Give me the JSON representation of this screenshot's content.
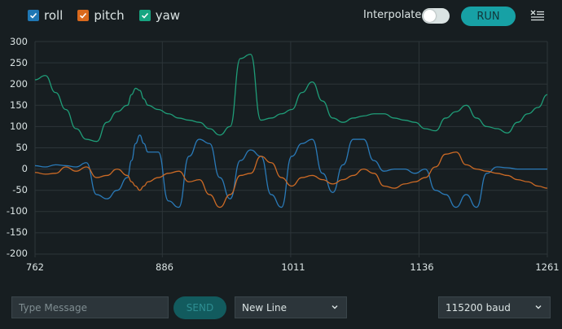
{
  "legend": {
    "items": [
      {
        "label": "roll",
        "color": "#1f77b4",
        "checked": true
      },
      {
        "label": "pitch",
        "color": "#d9691c",
        "checked": true
      },
      {
        "label": "yaw",
        "color": "#17a581",
        "checked": true
      }
    ]
  },
  "toolbar": {
    "interpolate_label": "Interpolate",
    "interpolate_on": false,
    "run_label": "RUN",
    "clear_icon": "clear-list-icon"
  },
  "footer": {
    "message_placeholder": "Type Message",
    "message_value": "",
    "send_label": "SEND",
    "line_ending": "New Line",
    "baud": "115200 baud"
  },
  "colors": {
    "background": "#171e21",
    "grid": "#2d3539",
    "accent": "#17a1a5",
    "roll": "#2a7ab8",
    "pitch": "#cc6a25",
    "yaw": "#1f9d78"
  },
  "chart_data": {
    "type": "line",
    "title": "",
    "xlabel": "",
    "ylabel": "",
    "xlim": [
      762,
      1261
    ],
    "ylim": [
      -200,
      300
    ],
    "grid": true,
    "legend_position": "top-left",
    "x_ticks": [
      762,
      886,
      1011,
      1136,
      1261
    ],
    "y_ticks": [
      300,
      250,
      200,
      150,
      100,
      50,
      0,
      -50,
      -100,
      -150,
      -200
    ],
    "x": [
      762,
      772,
      782,
      792,
      802,
      812,
      822,
      832,
      842,
      852,
      856,
      860,
      864,
      868,
      872,
      882,
      892,
      902,
      912,
      922,
      932,
      942,
      952,
      962,
      972,
      982,
      992,
      1002,
      1012,
      1022,
      1032,
      1042,
      1052,
      1062,
      1072,
      1082,
      1092,
      1102,
      1112,
      1122,
      1132,
      1142,
      1152,
      1162,
      1172,
      1182,
      1192,
      1202,
      1212,
      1222,
      1232,
      1242,
      1252,
      1261
    ],
    "series": [
      {
        "name": "roll",
        "values": [
          8,
          5,
          10,
          8,
          5,
          15,
          -60,
          -70,
          -50,
          -20,
          20,
          60,
          80,
          60,
          40,
          40,
          -75,
          -90,
          30,
          70,
          60,
          -20,
          -70,
          20,
          45,
          30,
          -60,
          -90,
          30,
          60,
          70,
          -10,
          -55,
          10,
          70,
          70,
          20,
          -5,
          0,
          0,
          -10,
          0,
          -50,
          -60,
          -90,
          -60,
          -90,
          -10,
          5,
          3,
          0,
          0,
          0,
          0
        ]
      },
      {
        "name": "pitch",
        "values": [
          -8,
          -12,
          -10,
          5,
          -5,
          5,
          -20,
          -15,
          0,
          -15,
          -30,
          -40,
          -50,
          -40,
          -30,
          -20,
          -10,
          -5,
          -30,
          -25,
          -60,
          -90,
          -60,
          -15,
          -10,
          30,
          15,
          -20,
          -40,
          -20,
          -15,
          -25,
          -35,
          -25,
          -15,
          0,
          -10,
          -40,
          -45,
          -35,
          -30,
          -20,
          5,
          35,
          40,
          10,
          0,
          -5,
          -10,
          -15,
          -25,
          -30,
          -40,
          -45
        ]
      },
      {
        "name": "yaw",
        "values": [
          210,
          220,
          180,
          140,
          95,
          70,
          65,
          110,
          135,
          150,
          175,
          190,
          185,
          165,
          150,
          140,
          130,
          120,
          115,
          110,
          95,
          80,
          100,
          260,
          270,
          115,
          120,
          130,
          140,
          180,
          205,
          160,
          120,
          110,
          120,
          125,
          130,
          130,
          120,
          115,
          110,
          95,
          90,
          120,
          135,
          150,
          120,
          100,
          95,
          85,
          110,
          130,
          145,
          175
        ]
      }
    ]
  }
}
